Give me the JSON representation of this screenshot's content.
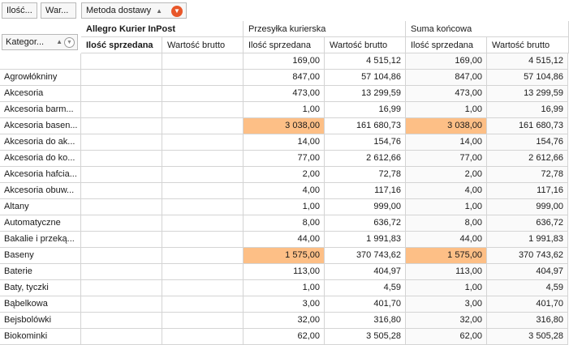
{
  "toolbar": {
    "field1": "Ilość...",
    "field2": "War...",
    "column_field": "Metoda dostawy",
    "column_field_sort": "▲"
  },
  "header": {
    "row_field_label": "Kategor...",
    "groups": [
      "Allegro Kurier InPost",
      "Przesyłka kurierska",
      "Suma końcowa"
    ],
    "measures": [
      "Ilość sprzedana",
      "Wartość brutto",
      "Ilość sprzedana",
      "Wartość brutto",
      "Ilość sprzedana",
      "Wartość brutto"
    ]
  },
  "rows": [
    {
      "label": "",
      "v": [
        "",
        "",
        "169,00",
        "4 515,12",
        "169,00",
        "4 515,12"
      ],
      "hl": false
    },
    {
      "label": "Agrowłókniny",
      "v": [
        "",
        "",
        "847,00",
        "57 104,86",
        "847,00",
        "57 104,86"
      ],
      "hl": false
    },
    {
      "label": "Akcesoria",
      "v": [
        "",
        "",
        "473,00",
        "13 299,59",
        "473,00",
        "13 299,59"
      ],
      "hl": false
    },
    {
      "label": "Akcesoria barm...",
      "v": [
        "",
        "",
        "1,00",
        "16,99",
        "1,00",
        "16,99"
      ],
      "hl": false
    },
    {
      "label": "Akcesoria basen...",
      "v": [
        "",
        "",
        "3 038,00",
        "161 680,73",
        "3 038,00",
        "161 680,73"
      ],
      "hl": true
    },
    {
      "label": "Akcesoria do ak...",
      "v": [
        "",
        "",
        "14,00",
        "154,76",
        "14,00",
        "154,76"
      ],
      "hl": false
    },
    {
      "label": "Akcesoria do ko...",
      "v": [
        "",
        "",
        "77,00",
        "2 612,66",
        "77,00",
        "2 612,66"
      ],
      "hl": false
    },
    {
      "label": "Akcesoria hafcia...",
      "v": [
        "",
        "",
        "2,00",
        "72,78",
        "2,00",
        "72,78"
      ],
      "hl": false
    },
    {
      "label": "Akcesoria obuw...",
      "v": [
        "",
        "",
        "4,00",
        "117,16",
        "4,00",
        "117,16"
      ],
      "hl": false
    },
    {
      "label": "Altany",
      "v": [
        "",
        "",
        "1,00",
        "999,00",
        "1,00",
        "999,00"
      ],
      "hl": false
    },
    {
      "label": "Automatyczne",
      "v": [
        "",
        "",
        "8,00",
        "636,72",
        "8,00",
        "636,72"
      ],
      "hl": false
    },
    {
      "label": "Bakalie i przeką...",
      "v": [
        "",
        "",
        "44,00",
        "1 991,83",
        "44,00",
        "1 991,83"
      ],
      "hl": false
    },
    {
      "label": "Baseny",
      "v": [
        "",
        "",
        "1 575,00",
        "370 743,62",
        "1 575,00",
        "370 743,62"
      ],
      "hl": true
    },
    {
      "label": "Baterie",
      "v": [
        "",
        "",
        "113,00",
        "404,97",
        "113,00",
        "404,97"
      ],
      "hl": false
    },
    {
      "label": "Baty, tyczki",
      "v": [
        "",
        "",
        "1,00",
        "4,59",
        "1,00",
        "4,59"
      ],
      "hl": false
    },
    {
      "label": "Bąbelkowa",
      "v": [
        "",
        "",
        "3,00",
        "401,70",
        "3,00",
        "401,70"
      ],
      "hl": false
    },
    {
      "label": "Bejsbolówki",
      "v": [
        "",
        "",
        "32,00",
        "316,80",
        "32,00",
        "316,80"
      ],
      "hl": false
    },
    {
      "label": "Biokominki",
      "v": [
        "",
        "",
        "62,00",
        "3 505,28",
        "62,00",
        "3 505,28"
      ],
      "hl": false
    }
  ],
  "colors": {
    "highlight": "#fdbf86",
    "filter_active": "#e8572a"
  }
}
